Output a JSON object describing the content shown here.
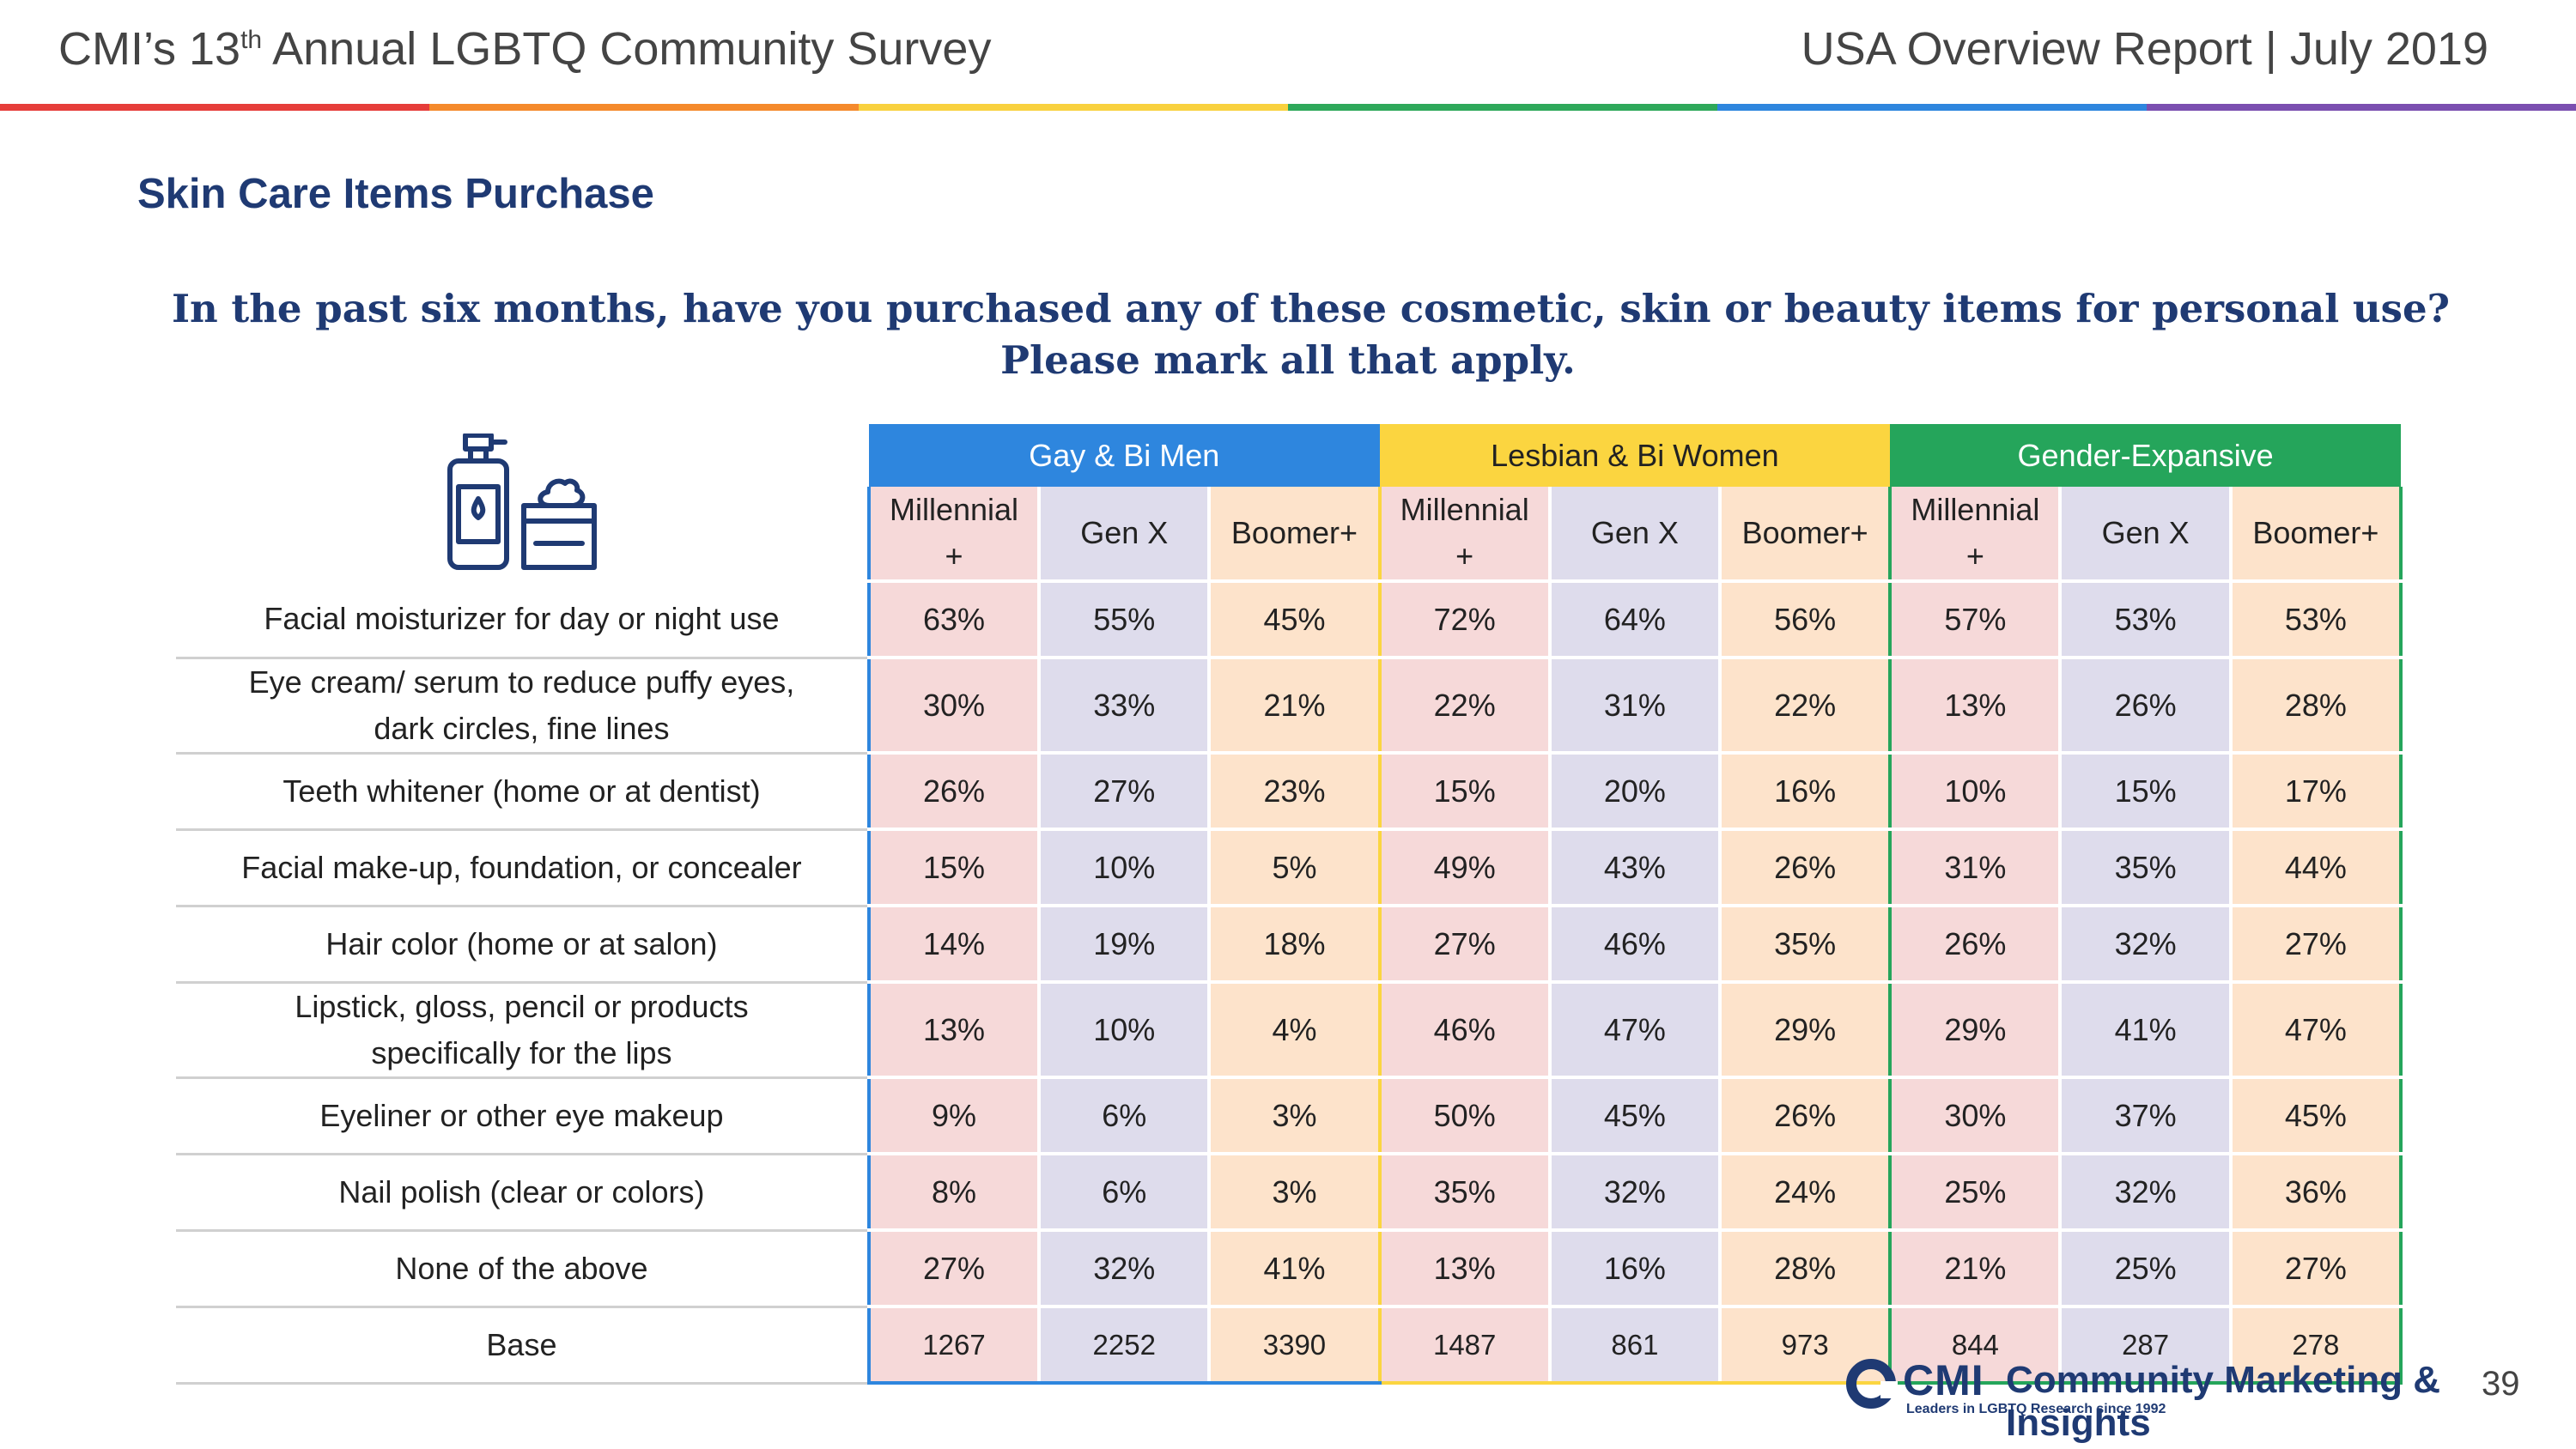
{
  "header": {
    "left_pre": "CMI’s 13",
    "left_sup": "th",
    "left_post": " Annual LGBTQ Community Survey",
    "right": "USA Overview Report | July 2019"
  },
  "colors": {
    "rainbow": [
      "#e63d3a",
      "#f58a2c",
      "#f9d13e",
      "#2ea85a",
      "#2e86de",
      "#7b4fb0"
    ],
    "gay_bi_men": "#2e86de",
    "lesbian_bi_women": "#fbd540",
    "gender_expansive": "#25a55b",
    "title": "#1f3a73"
  },
  "section_title": "Skin Care Items Purchase",
  "question": {
    "line1": "In the past six months, have you purchased any of these cosmetic, skin or beauty items for personal use?",
    "line2": "Please mark all that apply."
  },
  "icon_name": "cosmetics-bottles-icon",
  "table": {
    "groups": [
      "Gay & Bi Men",
      "Lesbian & Bi Women",
      "Gender-Expansive"
    ],
    "subheaders": {
      "millennial_l1": "Millennial",
      "millennial_l2": "+",
      "genx": "Gen X",
      "boomer": "Boomer+"
    },
    "rows": [
      {
        "l1": "Facial moisturizer for day or night use",
        "l2": "",
        "v": [
          "63%",
          "55%",
          "45%",
          "72%",
          "64%",
          "56%",
          "57%",
          "53%",
          "53%"
        ]
      },
      {
        "l1": "Eye cream/ serum to reduce puffy eyes,",
        "l2": "dark circles, fine lines",
        "v": [
          "30%",
          "33%",
          "21%",
          "22%",
          "31%",
          "22%",
          "13%",
          "26%",
          "28%"
        ]
      },
      {
        "l1": "Teeth whitener (home or at dentist)",
        "l2": "",
        "v": [
          "26%",
          "27%",
          "23%",
          "15%",
          "20%",
          "16%",
          "10%",
          "15%",
          "17%"
        ]
      },
      {
        "l1": "Facial make-up, foundation, or concealer",
        "l2": "",
        "v": [
          "15%",
          "10%",
          "5%",
          "49%",
          "43%",
          "26%",
          "31%",
          "35%",
          "44%"
        ]
      },
      {
        "l1": "Hair color (home or at salon)",
        "l2": "",
        "v": [
          "14%",
          "19%",
          "18%",
          "27%",
          "46%",
          "35%",
          "26%",
          "32%",
          "27%"
        ]
      },
      {
        "l1": "Lipstick, gloss, pencil or products",
        "l2": "specifically for the lips",
        "v": [
          "13%",
          "10%",
          "4%",
          "46%",
          "47%",
          "29%",
          "29%",
          "41%",
          "47%"
        ]
      },
      {
        "l1": "Eyeliner or other eye makeup",
        "l2": "",
        "v": [
          "9%",
          "6%",
          "3%",
          "50%",
          "45%",
          "26%",
          "30%",
          "37%",
          "45%"
        ]
      },
      {
        "l1": "Nail polish (clear or colors)",
        "l2": "",
        "v": [
          "8%",
          "6%",
          "3%",
          "35%",
          "32%",
          "24%",
          "25%",
          "32%",
          "36%"
        ]
      },
      {
        "l1": "None of the above",
        "l2": "",
        "v": [
          "27%",
          "32%",
          "41%",
          "13%",
          "16%",
          "28%",
          "21%",
          "25%",
          "27%"
        ]
      }
    ],
    "base": {
      "label": "Base",
      "v": [
        "1267",
        "2252",
        "3390",
        "1487",
        "861",
        "973",
        "844",
        "287",
        "278"
      ]
    }
  },
  "footer": {
    "logo_cmi": "CMI",
    "logo_name": "Community Marketing & Insights",
    "logo_tagline": "Leaders in LGBTQ Research since 1992",
    "page_number": "39"
  }
}
